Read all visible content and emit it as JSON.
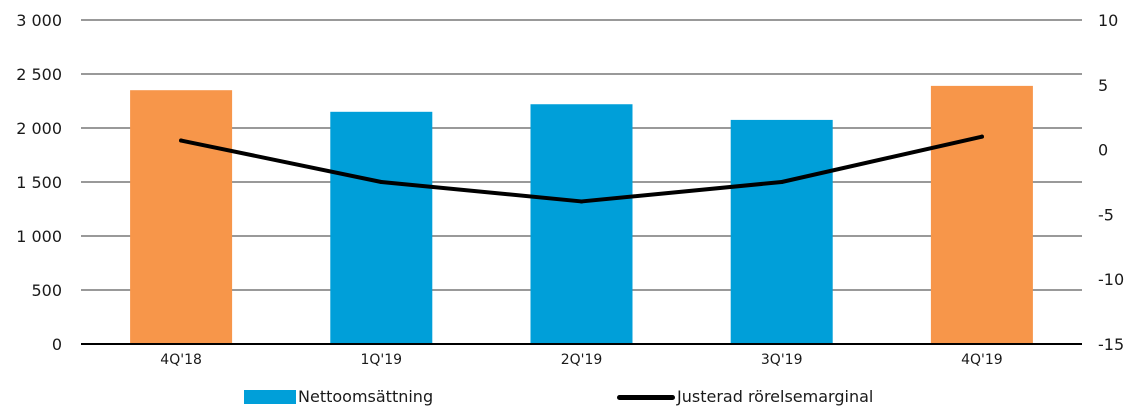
{
  "colors": {
    "bar": "#009fd9",
    "bar_highlight": "#f7964a",
    "line": "#000000",
    "grid": "#333333"
  },
  "chart_data": {
    "type": "bar",
    "categories": [
      "4Q'18",
      "1Q'19",
      "2Q'19",
      "3Q'19",
      "4Q'19"
    ],
    "series": [
      {
        "name": "Nettoomsättning",
        "kind": "bar",
        "axis": "left",
        "values": [
          2350,
          2150,
          2220,
          2075,
          2390
        ],
        "highlight": [
          true,
          false,
          false,
          false,
          true
        ]
      },
      {
        "name": "Justerad rörelsemarginal",
        "kind": "line",
        "axis": "right",
        "values": [
          0.7,
          -2.5,
          -4.0,
          -2.5,
          1.0
        ]
      }
    ],
    "y_left": {
      "min": 0,
      "max": 3000,
      "step": 500,
      "tick_labels": [
        "0",
        "500",
        "1 000",
        "1 500",
        "2 000",
        "2 500",
        "3 000"
      ]
    },
    "y_right": {
      "min": -15,
      "max": 10,
      "step": 5,
      "tick_labels": [
        "-15",
        "-10",
        "-5",
        "0",
        "5",
        "10"
      ]
    },
    "grid": true,
    "legend": "bottom",
    "title": "",
    "xlabel": "",
    "ylabel": ""
  }
}
